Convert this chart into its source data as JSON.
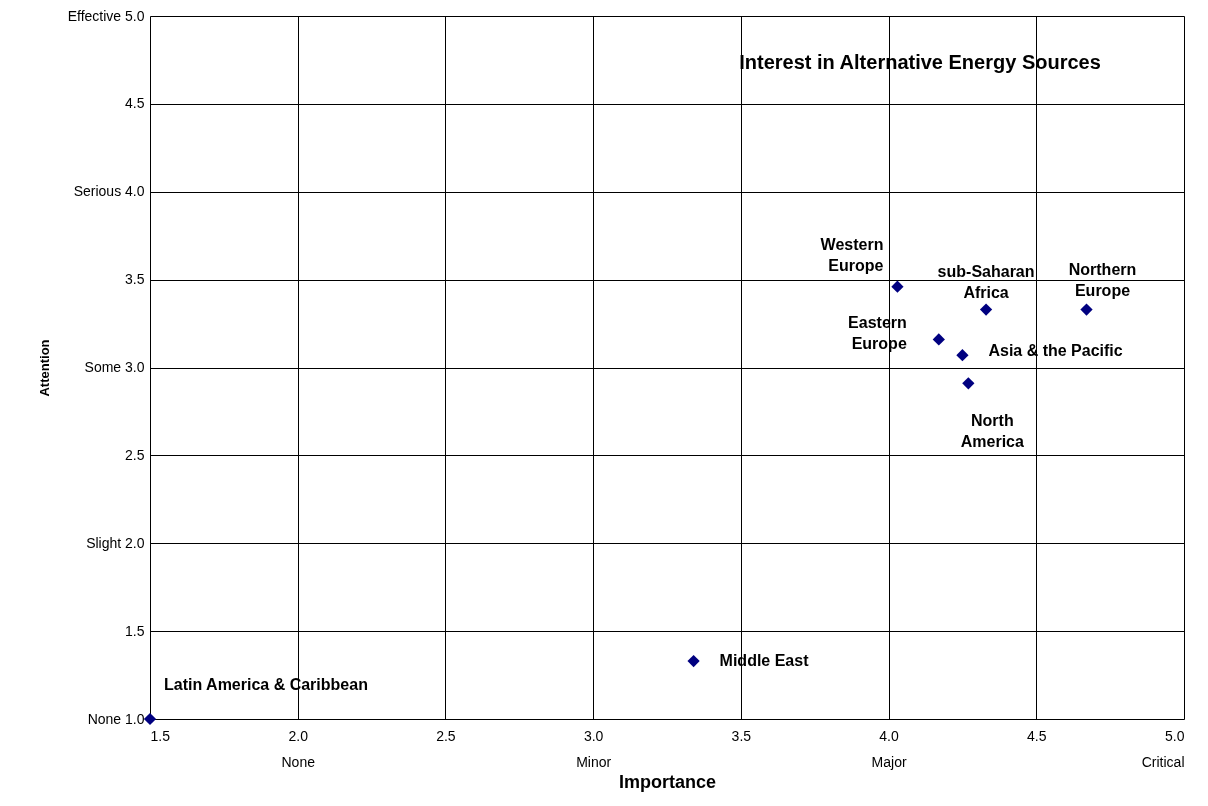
{
  "chart_data": {
    "type": "scatter",
    "title": "Interest in Alternative Energy Sources",
    "xlabel": "Importance",
    "ylabel": "Attention",
    "x": [
      1.5,
      3.34,
      4.03,
      4.33,
      4.67,
      4.17,
      4.25,
      4.27
    ],
    "series": [
      {
        "color": "#000080",
        "values": [
          1.0,
          1.33,
          3.46,
          3.33,
          3.33,
          3.16,
          3.07,
          2.91
        ]
      }
    ],
    "annotations": [
      {
        "text": "Latin America & Caribbean",
        "x": 1.5,
        "y": 1.0
      },
      {
        "text": "Middle East",
        "x": 3.34,
        "y": 1.33
      },
      {
        "text": "Western\nEurope",
        "x": 4.03,
        "y": 3.46
      },
      {
        "text": "sub-Saharan\nAfrica",
        "x": 4.33,
        "y": 3.33
      },
      {
        "text": "Northern\nEurope",
        "x": 4.67,
        "y": 3.33
      },
      {
        "text": "Eastern\nEurope",
        "x": 4.17,
        "y": 3.16
      },
      {
        "text": "Asia & the Pacific",
        "x": 4.25,
        "y": 3.07
      },
      {
        "text": "North\nAmerica",
        "x": 4.27,
        "y": 2.91
      }
    ],
    "xlim": [
      1.5,
      5.0
    ],
    "xticks": [
      {
        "value": 1.5,
        "label": "1.5"
      },
      {
        "value": 2.0,
        "label": "2.0\nNone"
      },
      {
        "value": 2.5,
        "label": "2.5"
      },
      {
        "value": 3.0,
        "label": "3.0\nMinor"
      },
      {
        "value": 3.5,
        "label": "3.5"
      },
      {
        "value": 4.0,
        "label": "4.0\nMajor"
      },
      {
        "value": 4.5,
        "label": "4.5"
      },
      {
        "value": 5.0,
        "label": "5.0\nCritical"
      }
    ],
    "ylim": [
      1.0,
      5.0
    ],
    "yticks": [
      {
        "value": 1.0,
        "label": "None 1.0"
      },
      {
        "value": 1.5,
        "label": "1.5"
      },
      {
        "value": 2.0,
        "label": "Slight 2.0"
      },
      {
        "value": 2.5,
        "label": "2.5"
      },
      {
        "value": 3.0,
        "label": "Some 3.0"
      },
      {
        "value": 3.5,
        "label": "3.5"
      },
      {
        "value": 4.0,
        "label": "Serious 4.0"
      },
      {
        "value": 4.5,
        "label": "4.5"
      },
      {
        "value": 5.0,
        "label": "Effective 5.0"
      }
    ],
    "grid": true,
    "marker": "diamond"
  }
}
